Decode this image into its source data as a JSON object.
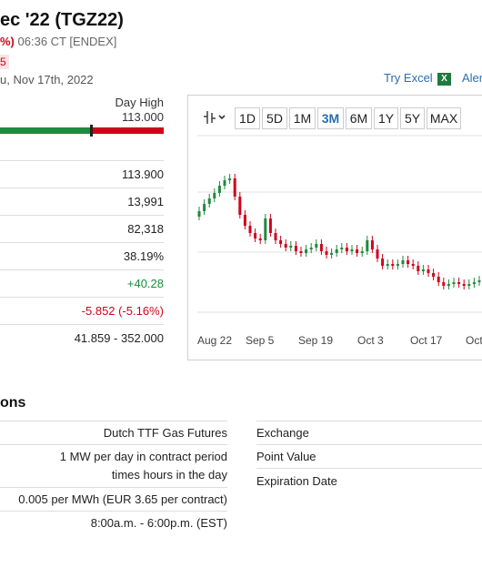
{
  "header": {
    "title": "ec '22 (TGZ22)",
    "change_pct": "%)",
    "time_exchange": "06:36 CT [ENDEX]",
    "badge": "5",
    "date": "u, Nov 17th, 2022",
    "try_excel": "Try Excel",
    "excel_icon": "excel-icon",
    "alerts": "Aler"
  },
  "day_range": {
    "label": "Day High",
    "value": "113.000",
    "fill_fraction": 0.56,
    "low_color": "#1e8a3c",
    "high_color": "#d0021b"
  },
  "stats": [
    {
      "value": "113.900",
      "tone": "neutral"
    },
    {
      "value": "13,991",
      "tone": "neutral"
    },
    {
      "value": "82,318",
      "tone": "neutral"
    },
    {
      "value": "38.19%",
      "tone": "neutral"
    },
    {
      "value": "+40.28",
      "tone": "pos"
    },
    {
      "value": "-5.852 (-5.16%)",
      "tone": "neg"
    },
    {
      "value": "41.859 - 352.000",
      "tone": "neutral"
    }
  ],
  "chart": {
    "type_icon": "candlestick-icon",
    "periods": [
      "1D",
      "5D",
      "1M",
      "3M",
      "6M",
      "1Y",
      "5Y",
      "MAX"
    ],
    "selected_period": "3M",
    "x_labels": [
      "Aug 22",
      "Sep 5",
      "Sep 19",
      "Oct 3",
      "Oct 17",
      "Oct"
    ],
    "up_color": "#1e8a3c",
    "down_color": "#d0021b"
  },
  "chart_data": {
    "type": "candlestick",
    "title": "",
    "xlabel": "",
    "ylabel": "",
    "x_ticks": [
      "Aug 22",
      "Sep 5",
      "Sep 19",
      "Oct 3",
      "Oct 17",
      "Oct"
    ],
    "series": [
      {
        "close": [
          0.56,
          0.6,
          0.63,
          0.66,
          0.7,
          0.73,
          0.74,
          0.64,
          0.54,
          0.48,
          0.44,
          0.41,
          0.4,
          0.52,
          0.44,
          0.4,
          0.38,
          0.36,
          0.37,
          0.34,
          0.33,
          0.35,
          0.36,
          0.38,
          0.34,
          0.32,
          0.33,
          0.35,
          0.36,
          0.34,
          0.35,
          0.33,
          0.34,
          0.4,
          0.35,
          0.3,
          0.26,
          0.27,
          0.26,
          0.27,
          0.29,
          0.27,
          0.26,
          0.23,
          0.24,
          0.22,
          0.2,
          0.17,
          0.15,
          0.16,
          0.17,
          0.16,
          0.15,
          0.16,
          0.17,
          0.18
        ]
      }
    ]
  },
  "contract_specs": {
    "section_title": "ons",
    "left_values": [
      "Dutch TTF Gas Futures",
      "1 MW per day in contract period times hours in the day",
      "0.005 per MWh (EUR 3.65 per contract)",
      "8:00a.m. - 6:00p.m. (EST)"
    ],
    "right_labels": [
      "Exchange",
      "Point Value",
      "Expiration Date"
    ]
  }
}
